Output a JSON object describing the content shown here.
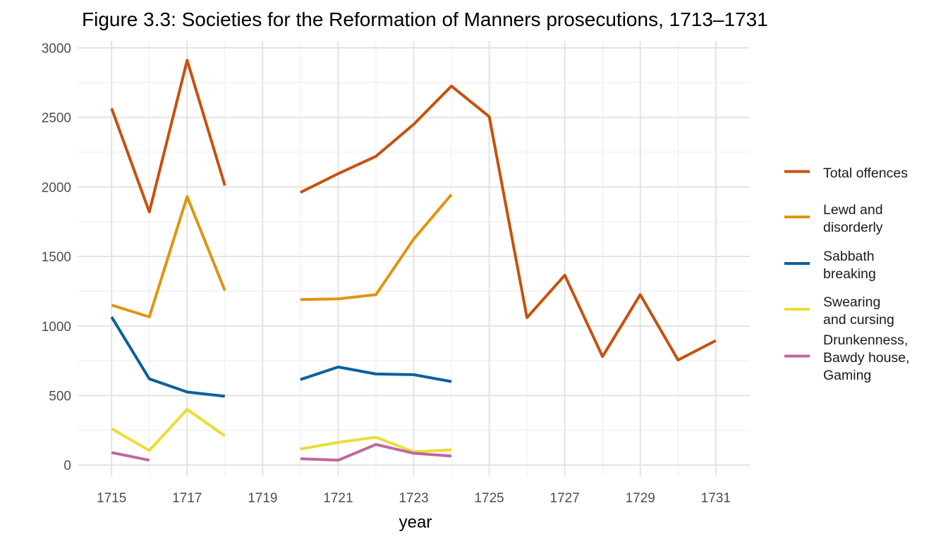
{
  "chart_data": {
    "type": "line",
    "title": "Figure 3.3: Societies for the Reformation of Manners prosecutions, 1713–1731",
    "xlabel": "year",
    "ylabel": "",
    "xlim": [
      1714.1,
      1731.9
    ],
    "ylim": [
      -80,
      3050
    ],
    "x_ticks": [
      1715,
      1717,
      1719,
      1721,
      1723,
      1725,
      1727,
      1729,
      1731
    ],
    "x_tick_labels": [
      "1715",
      "1717",
      "1719",
      "1721",
      "1723",
      "1725",
      "1727",
      "1729",
      "1731"
    ],
    "y_ticks": [
      0,
      500,
      1000,
      1500,
      2000,
      2500,
      3000
    ],
    "y_tick_labels": [
      "0",
      "500",
      "1000",
      "1500",
      "2000",
      "2500",
      "3000"
    ],
    "grid": true,
    "legend_position": "right",
    "series": [
      {
        "key": "total",
        "name": [
          "Total offences"
        ],
        "color": "#C8500E",
        "points": [
          [
            1715,
            2565
          ],
          [
            1716,
            1820
          ],
          [
            1717,
            2910
          ],
          [
            1718,
            2010
          ],
          [
            1719,
            null
          ],
          [
            1720,
            1960
          ],
          [
            1721,
            2095
          ],
          [
            1722,
            2220
          ],
          [
            1723,
            2450
          ],
          [
            1724,
            2725
          ],
          [
            1725,
            2505
          ],
          [
            1726,
            1060
          ],
          [
            1727,
            1365
          ],
          [
            1728,
            780
          ],
          [
            1729,
            1225
          ],
          [
            1730,
            755
          ],
          [
            1731,
            895
          ]
        ]
      },
      {
        "key": "lewd",
        "name": [
          "Lewd and",
          "disorderly"
        ],
        "color": "#E0940E",
        "points": [
          [
            1715,
            1150
          ],
          [
            1716,
            1065
          ],
          [
            1717,
            1930
          ],
          [
            1718,
            1255
          ],
          [
            1719,
            null
          ],
          [
            1720,
            1190
          ],
          [
            1721,
            1195
          ],
          [
            1722,
            1225
          ],
          [
            1723,
            1625
          ],
          [
            1724,
            1945
          ]
        ]
      },
      {
        "key": "sabbath",
        "name": [
          "Sabbath",
          "breaking"
        ],
        "color": "#0A5FA0",
        "points": [
          [
            1715,
            1065
          ],
          [
            1716,
            620
          ],
          [
            1717,
            525
          ],
          [
            1718,
            495
          ],
          [
            1719,
            null
          ],
          [
            1720,
            615
          ],
          [
            1721,
            705
          ],
          [
            1722,
            655
          ],
          [
            1723,
            650
          ],
          [
            1724,
            600
          ]
        ]
      },
      {
        "key": "swearing",
        "name": [
          "Swearing",
          "and cursing"
        ],
        "color": "#EBDD35",
        "points": [
          [
            1715,
            262
          ],
          [
            1716,
            105
          ],
          [
            1717,
            400
          ],
          [
            1718,
            210
          ],
          [
            1719,
            null
          ],
          [
            1720,
            115
          ],
          [
            1721,
            163
          ],
          [
            1722,
            200
          ],
          [
            1723,
            95
          ],
          [
            1724,
            110
          ]
        ]
      },
      {
        "key": "drunk",
        "name": [
          "Drunkenness,",
          "Bawdy house,",
          "Gaming"
        ],
        "color": "#C066A0",
        "points": [
          [
            1715,
            90
          ],
          [
            1716,
            35
          ],
          [
            1719,
            null
          ],
          [
            1720,
            45
          ],
          [
            1721,
            35
          ],
          [
            1722,
            148
          ],
          [
            1723,
            85
          ],
          [
            1724,
            65
          ]
        ]
      }
    ]
  }
}
